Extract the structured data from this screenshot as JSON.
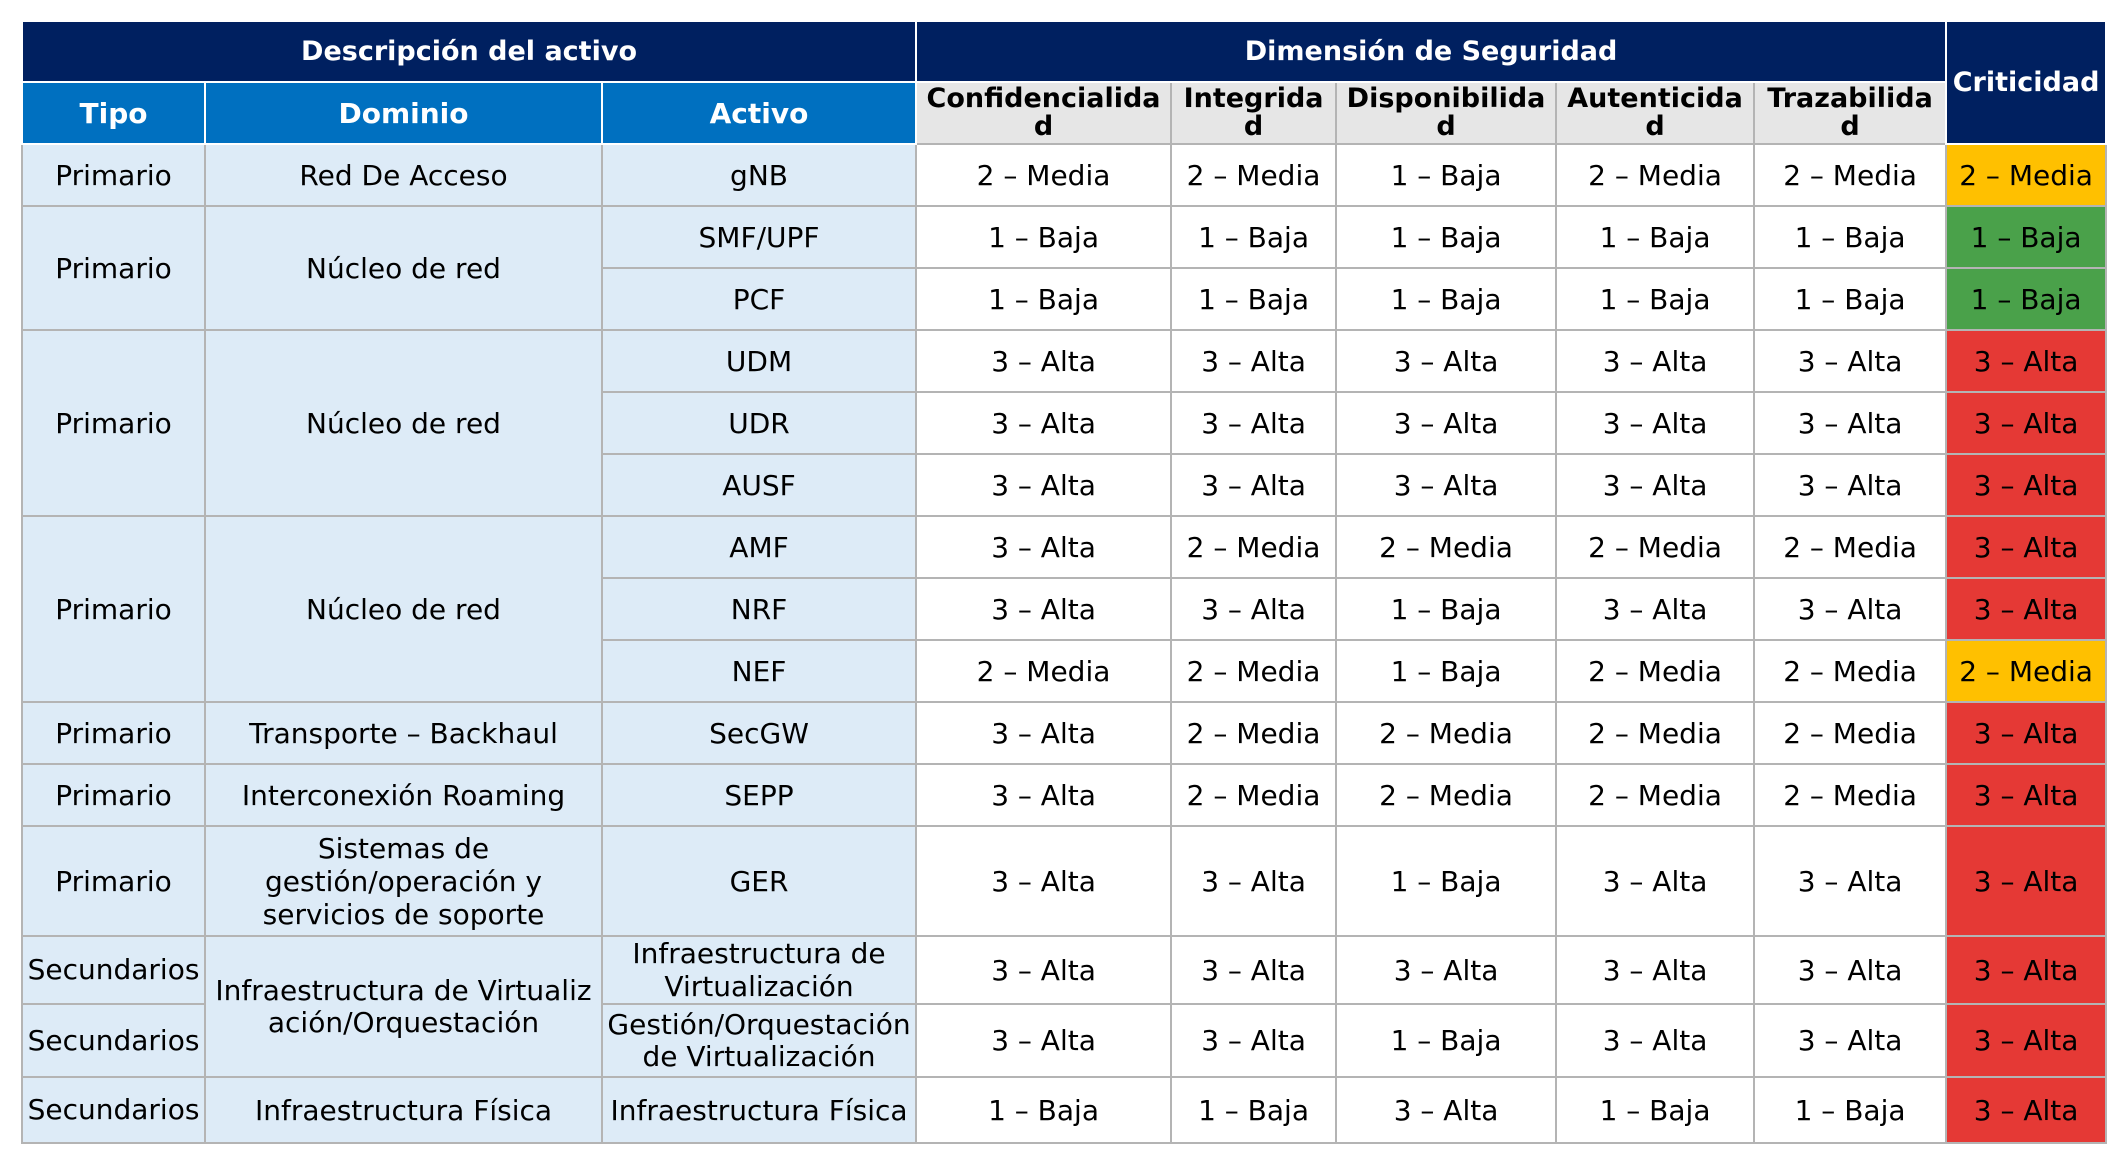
{
  "header": {
    "group_asset": "Descripción del activo",
    "group_security": "Dimensión de Seguridad",
    "criticidad": "Criticidad",
    "col_tipo": "Tipo",
    "col_dominio": "Dominio",
    "col_activo": "Activo",
    "dims": [
      "Confidencialidad",
      "Integridad",
      "Disponibilidad",
      "Autenticidad",
      "Trazabilidad"
    ]
  },
  "groups": [
    {
      "tipo": "Primario",
      "dominio": "Red De Acceso"
    },
    {
      "tipo": "Primario",
      "dominio": "Núcleo de red"
    },
    {
      "tipo": "Primario",
      "dominio": "Núcleo de red"
    },
    {
      "tipo": "Primario",
      "dominio": "Núcleo de red"
    },
    {
      "tipo": "Primario",
      "dominio": "Transporte – Backhaul"
    },
    {
      "tipo": "Primario",
      "dominio": "Interconexión Roaming"
    },
    {
      "tipo": "Primario",
      "dominio": "Sistemas de gestión/operación y servicios de soporte"
    },
    {
      "tipo": "Secundarios",
      "dominio": "Infraestructura de Virtualización/Orquestación"
    },
    {
      "tipo": "Secundarios"
    },
    {
      "tipo": "Secundarios",
      "dominio": "Infraestructura Física"
    }
  ],
  "rows": [
    {
      "activo": "gNB",
      "values": [
        "2 – Media",
        "2 – Media",
        "1 – Baja",
        "2 – Media",
        "2 – Media"
      ],
      "criticidad": "2 – Media",
      "level": "media"
    },
    {
      "activo": "SMF/UPF",
      "values": [
        "1 – Baja",
        "1 – Baja",
        "1 – Baja",
        "1 – Baja",
        "1 – Baja"
      ],
      "criticidad": "1 – Baja",
      "level": "baja"
    },
    {
      "activo": "PCF",
      "values": [
        "1 – Baja",
        "1 – Baja",
        "1 – Baja",
        "1 – Baja",
        "1 – Baja"
      ],
      "criticidad": "1 – Baja",
      "level": "baja"
    },
    {
      "activo": "UDM",
      "values": [
        "3 – Alta",
        "3 – Alta",
        "3 – Alta",
        "3 – Alta",
        "3 – Alta"
      ],
      "criticidad": "3 – Alta",
      "level": "alta"
    },
    {
      "activo": "UDR",
      "values": [
        "3 – Alta",
        "3 – Alta",
        "3 – Alta",
        "3 – Alta",
        "3 – Alta"
      ],
      "criticidad": "3 – Alta",
      "level": "alta"
    },
    {
      "activo": "AUSF",
      "values": [
        "3 – Alta",
        "3 – Alta",
        "3 – Alta",
        "3 – Alta",
        "3 – Alta"
      ],
      "criticidad": "3 – Alta",
      "level": "alta"
    },
    {
      "activo": "AMF",
      "values": [
        "3 – Alta",
        "2 – Media",
        "2 – Media",
        "2 – Media",
        "2 – Media"
      ],
      "criticidad": "3 – Alta",
      "level": "alta"
    },
    {
      "activo": "NRF",
      "values": [
        "3 – Alta",
        "3 – Alta",
        "1 – Baja",
        "3 – Alta",
        "3 – Alta"
      ],
      "criticidad": "3 – Alta",
      "level": "alta"
    },
    {
      "activo": "NEF",
      "values": [
        "2 – Media",
        "2 – Media",
        "1 – Baja",
        "2 – Media",
        "2 – Media"
      ],
      "criticidad": "2 – Media",
      "level": "media"
    },
    {
      "activo": "SecGW",
      "values": [
        "3 – Alta",
        "2 – Media",
        "2 – Media",
        "2 – Media",
        "2 – Media"
      ],
      "criticidad": "3 – Alta",
      "level": "alta"
    },
    {
      "activo": "SEPP",
      "values": [
        "3 – Alta",
        "2 – Media",
        "2 – Media",
        "2 – Media",
        "2 – Media"
      ],
      "criticidad": "3 – Alta",
      "level": "alta"
    },
    {
      "activo": "GER",
      "values": [
        "3 – Alta",
        "3 – Alta",
        "1 – Baja",
        "3 – Alta",
        "3 – Alta"
      ],
      "criticidad": "3 – Alta",
      "level": "alta"
    },
    {
      "activo": "Infraestructura de Virtualización",
      "values": [
        "3 – Alta",
        "3 – Alta",
        "3 – Alta",
        "3 – Alta",
        "3 – Alta"
      ],
      "criticidad": "3 – Alta",
      "level": "alta"
    },
    {
      "activo": "Gestión/Orquestación de Virtualización",
      "values": [
        "3 – Alta",
        "3 – Alta",
        "1 – Baja",
        "3 – Alta",
        "3 – Alta"
      ],
      "criticidad": "3 – Alta",
      "level": "alta"
    },
    {
      "activo": "Infraestructura Física",
      "values": [
        "1 – Baja",
        "1 – Baja",
        "3 – Alta",
        "1 – Baja",
        "1 – Baja"
      ],
      "criticidad": "3 – Alta",
      "level": "alta"
    }
  ],
  "colors": {
    "header_navy": "#002060",
    "header_blue": "#0070c0",
    "header_grey": "#e6e6e6",
    "desc_bg": "#ddebf7",
    "crit_media": "#ffc000",
    "crit_baja": "#4aa14a",
    "crit_alta": "#e53935"
  }
}
